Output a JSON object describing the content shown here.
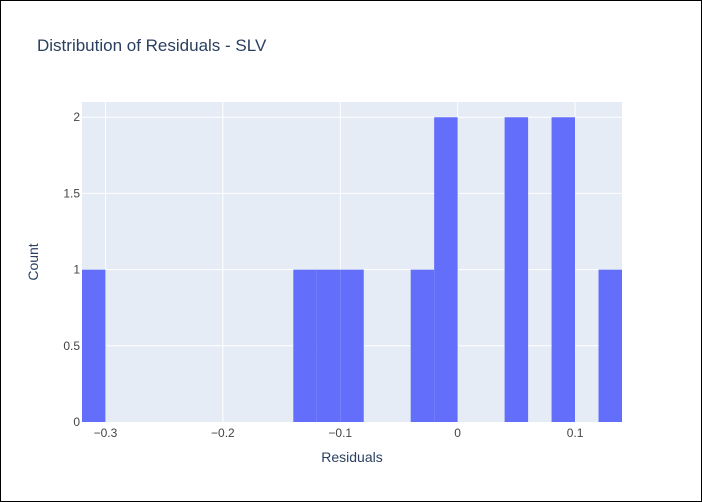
{
  "colors": {
    "bar": "#636efa",
    "plot_bg": "#e5ecf6",
    "grid": "#ffffff",
    "text": "#2a3f5f",
    "tick_text": "#444444"
  },
  "chart_data": {
    "type": "bar",
    "title": "Distribution of Residuals - SLV",
    "xlabel": "Residuals",
    "ylabel": "Count",
    "xlim": [
      -0.32,
      0.14
    ],
    "ylim": [
      0,
      2.1
    ],
    "bin_width": 0.02,
    "bins": [
      {
        "x0": -0.32,
        "x1": -0.3,
        "count": 1
      },
      {
        "x0": -0.14,
        "x1": -0.12,
        "count": 1
      },
      {
        "x0": -0.12,
        "x1": -0.1,
        "count": 1
      },
      {
        "x0": -0.1,
        "x1": -0.08,
        "count": 1
      },
      {
        "x0": -0.04,
        "x1": -0.02,
        "count": 1
      },
      {
        "x0": -0.02,
        "x1": 0.0,
        "count": 2
      },
      {
        "x0": 0.04,
        "x1": 0.06,
        "count": 2
      },
      {
        "x0": 0.08,
        "x1": 0.1,
        "count": 2
      },
      {
        "x0": 0.12,
        "x1": 0.14,
        "count": 1
      }
    ],
    "xticks": [
      {
        "value": -0.3,
        "label": "−0.3"
      },
      {
        "value": -0.2,
        "label": "−0.2"
      },
      {
        "value": -0.1,
        "label": "−0.1"
      },
      {
        "value": 0,
        "label": "0"
      },
      {
        "value": 0.1,
        "label": "0.1"
      }
    ],
    "yticks": [
      {
        "value": 0,
        "label": "0"
      },
      {
        "value": 0.5,
        "label": "0.5"
      },
      {
        "value": 1,
        "label": "1"
      },
      {
        "value": 1.5,
        "label": "1.5"
      },
      {
        "value": 2,
        "label": "2"
      }
    ],
    "grid": true
  }
}
